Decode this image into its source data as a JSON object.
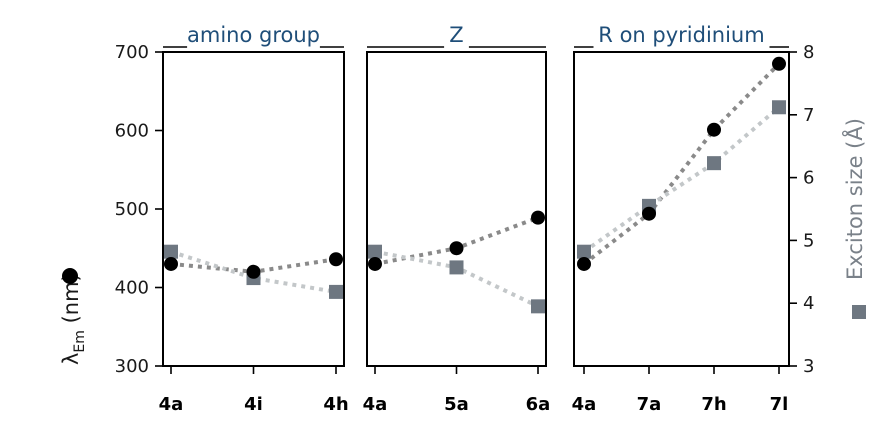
{
  "chart_data": {
    "type": "scatter",
    "left_axis": {
      "label_main": "λ",
      "label_sub": "Em",
      "label_unit": " (nm)",
      "ylim": [
        300,
        700
      ],
      "ticks": [
        300,
        400,
        500,
        600,
        700
      ]
    },
    "right_axis": {
      "label": "Exciton size (Å)",
      "ylim": [
        3,
        8
      ],
      "ticks": [
        3,
        4,
        5,
        6,
        7,
        8
      ]
    },
    "colors": {
      "emission_marker": "#000000",
      "emission_line": "#8a8a8a",
      "exciton_marker": "#6e7781",
      "exciton_line": "#c3c7c9",
      "title": "#1f4e79"
    },
    "panels": [
      {
        "title": "amino group",
        "categories": [
          "4a",
          "4i",
          "4h"
        ],
        "emission_nm": [
          430,
          420,
          436
        ],
        "exciton_size_A": [
          4.82,
          4.4,
          4.18
        ]
      },
      {
        "title": "Z",
        "categories": [
          "4a",
          "5a",
          "6a"
        ],
        "emission_nm": [
          430,
          450,
          489
        ],
        "exciton_size_A": [
          4.82,
          4.57,
          3.95
        ]
      },
      {
        "title": "R on pyridinium",
        "categories": [
          "4a",
          "7a",
          "7h",
          "7l"
        ],
        "emission_nm": [
          430,
          494,
          601,
          685
        ],
        "exciton_size_A": [
          4.82,
          5.55,
          6.23,
          7.12
        ]
      }
    ]
  }
}
